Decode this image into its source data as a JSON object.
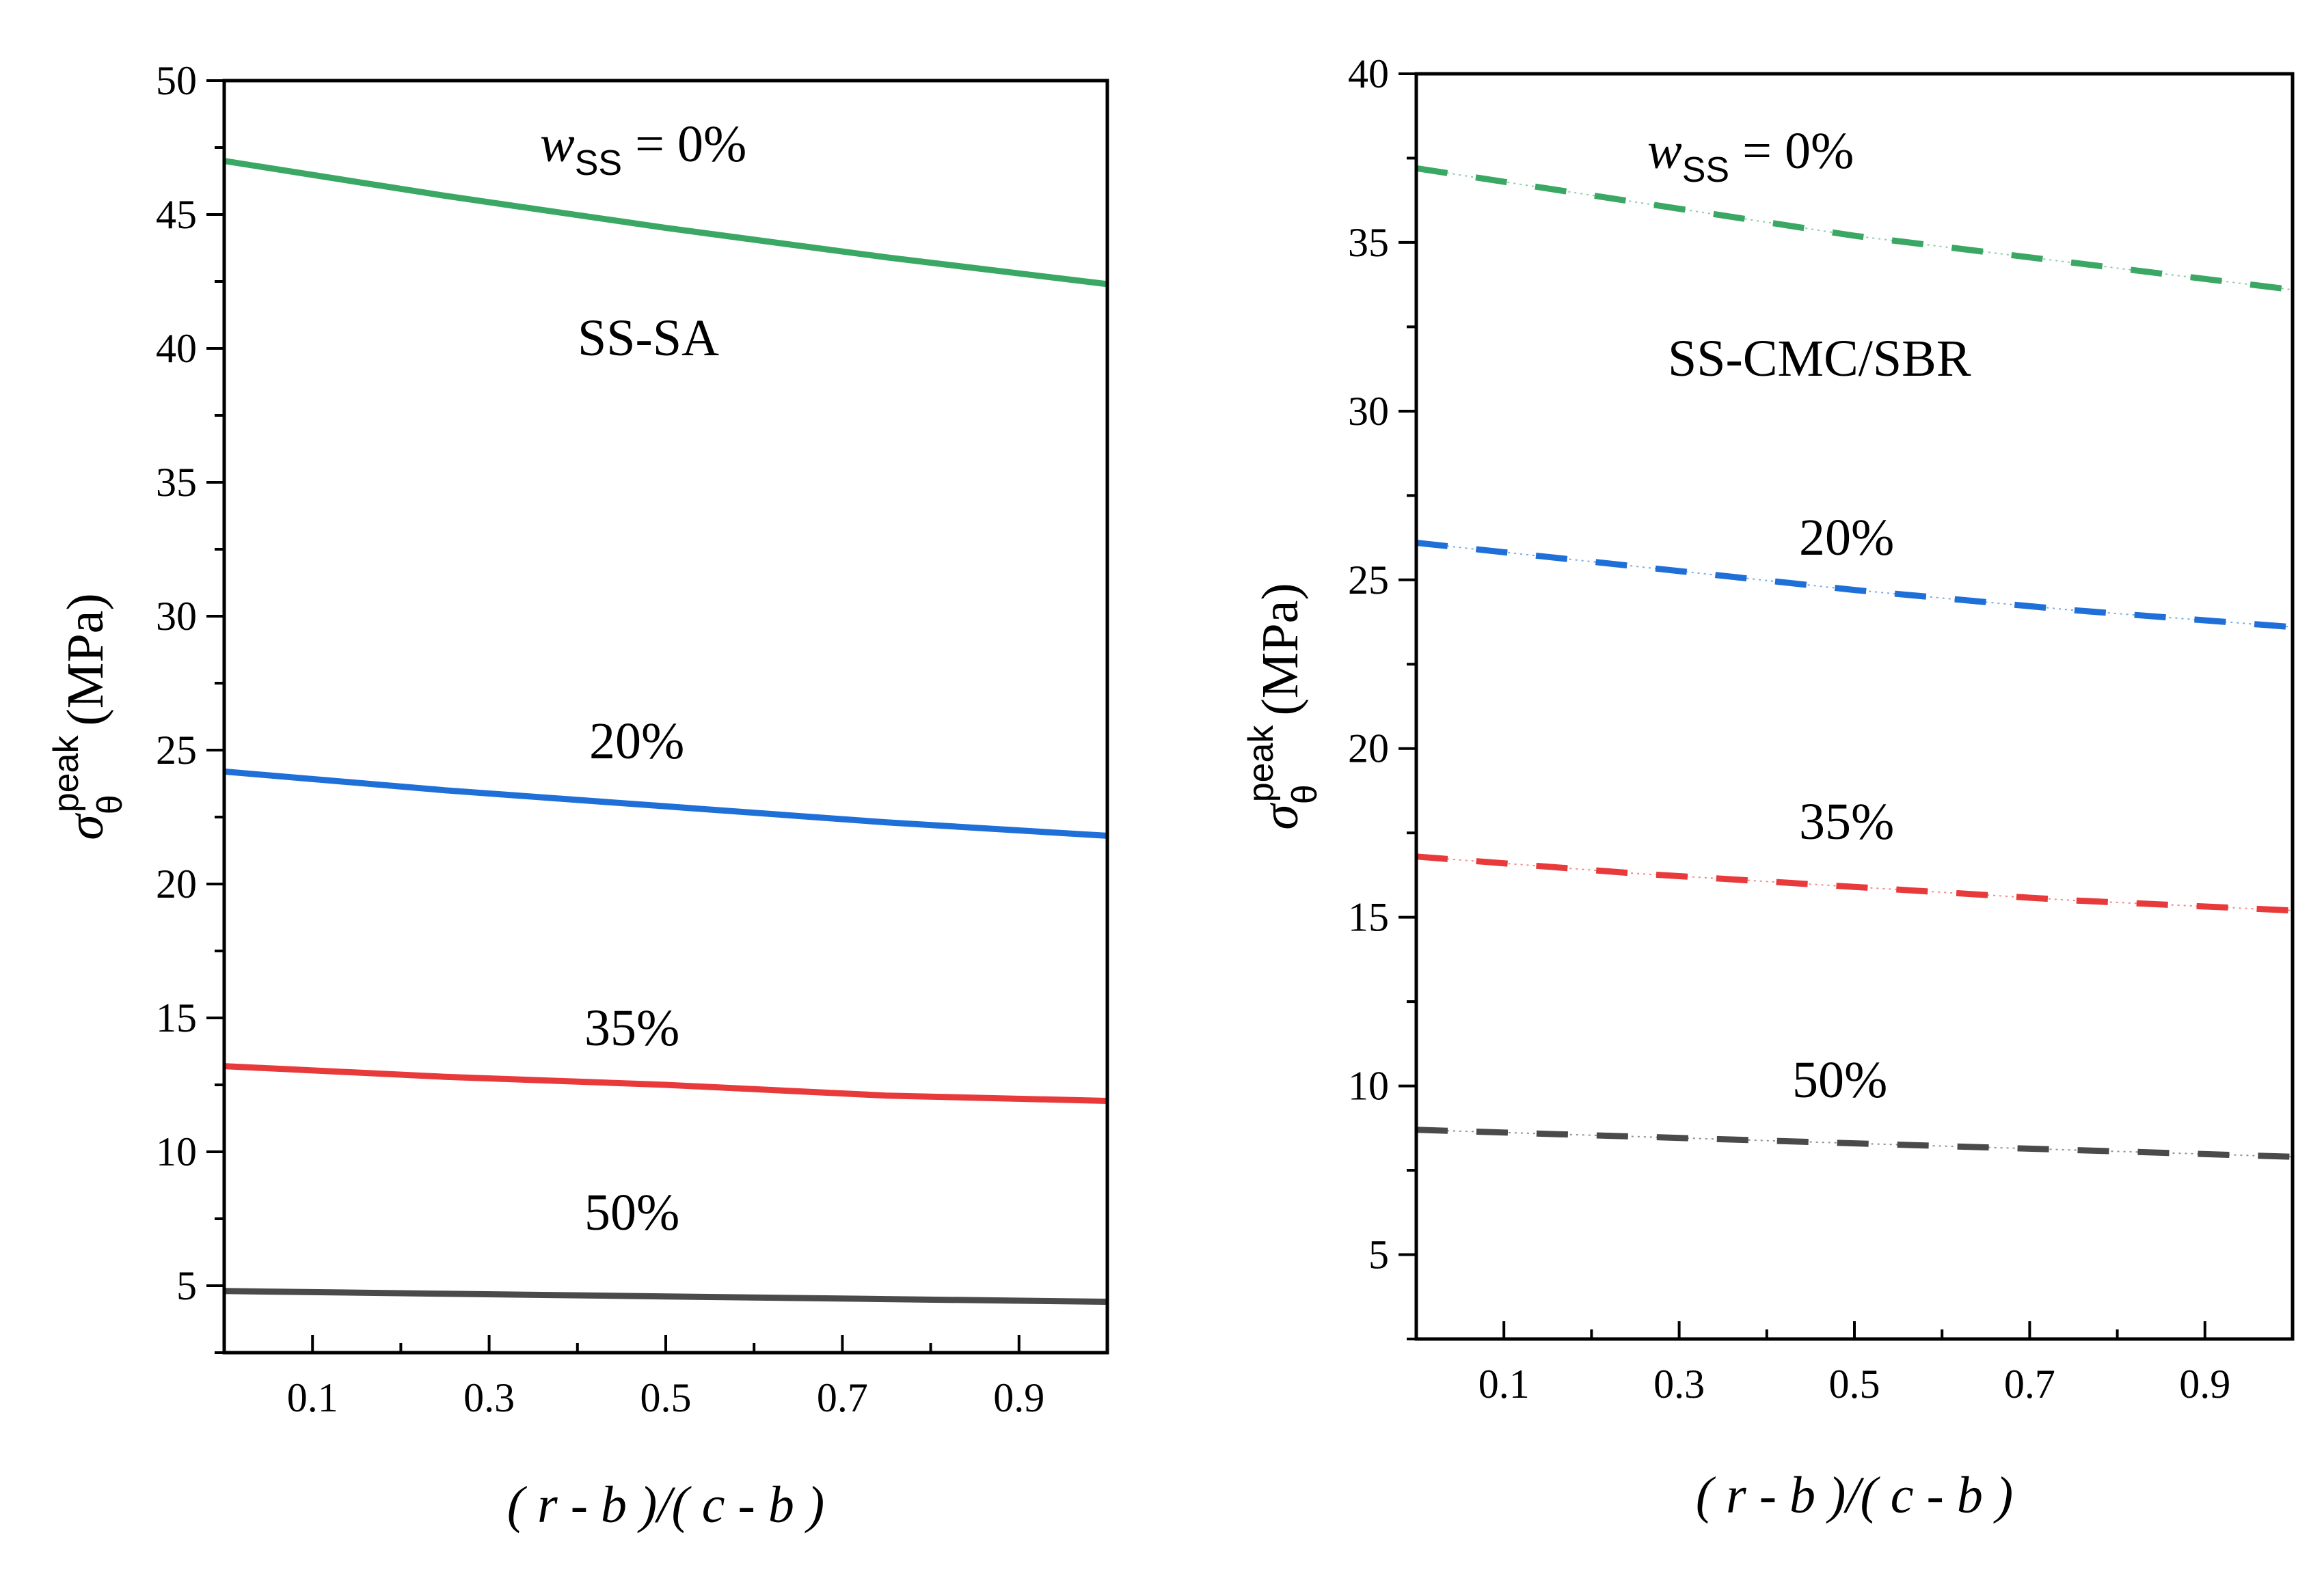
{
  "chart_data": [
    {
      "type": "line",
      "panel": "left",
      "xlabel": "( r - b )/( c - b )",
      "ylabel": "σθpeak (MPa)",
      "ylabel_parts": {
        "symbol": "σ",
        "sub": "θ",
        "sup": "peak",
        "unit": "(MPa)"
      },
      "xlim": [
        0,
        1
      ],
      "ylim": [
        2.5,
        50
      ],
      "xticks": [
        "0.1",
        "0.3",
        "0.5",
        "0.7",
        "0.9"
      ],
      "xtick_values": [
        0.1,
        0.3,
        0.5,
        0.7,
        0.9
      ],
      "yticks": [
        "5",
        "10",
        "15",
        "20",
        "25",
        "30",
        "35",
        "40",
        "45",
        "50"
      ],
      "ytick_values": [
        5,
        10,
        15,
        20,
        25,
        30,
        35,
        40,
        45,
        50
      ],
      "line_style": "solid",
      "series": [
        {
          "name": "0%",
          "color": "#3aa864",
          "x": [
            0,
            0.25,
            0.5,
            0.75,
            1.0
          ],
          "values": [
            47.0,
            45.7,
            44.5,
            43.4,
            42.4
          ]
        },
        {
          "name": "20%",
          "color": "#1f6fd8",
          "x": [
            0,
            0.25,
            0.5,
            0.75,
            1.0
          ],
          "values": [
            24.2,
            23.5,
            22.9,
            22.3,
            21.8
          ]
        },
        {
          "name": "35%",
          "color": "#e83a3a",
          "x": [
            0,
            0.25,
            0.5,
            0.75,
            1.0
          ],
          "values": [
            13.2,
            12.8,
            12.5,
            12.1,
            11.9
          ]
        },
        {
          "name": "50%",
          "color": "#4a4a4a",
          "x": [
            0,
            0.25,
            0.5,
            0.75,
            1.0
          ],
          "values": [
            4.8,
            4.7,
            4.6,
            4.5,
            4.4
          ]
        }
      ],
      "annotations": {
        "w_label_var": "w",
        "w_label_sub": "SS",
        "w_label_rest": " = 0%",
        "material": "SS-SA",
        "p20": "20%",
        "p35": "35%",
        "p50": "50%"
      }
    },
    {
      "type": "line",
      "panel": "right",
      "xlabel": "( r - b )/( c - b )",
      "ylabel": "σθpeak (MPa)",
      "ylabel_parts": {
        "symbol": "σ",
        "sub": "θ",
        "sup": "peak",
        "unit": "(MPa)"
      },
      "xlim": [
        0,
        1
      ],
      "ylim": [
        2.5,
        40
      ],
      "xticks": [
        "0.1",
        "0.3",
        "0.5",
        "0.7",
        "0.9"
      ],
      "xtick_values": [
        0.1,
        0.3,
        0.5,
        0.7,
        0.9
      ],
      "yticks": [
        "5",
        "10",
        "15",
        "20",
        "25",
        "30",
        "35",
        "40"
      ],
      "ytick_values": [
        5,
        10,
        15,
        20,
        25,
        30,
        35,
        40
      ],
      "line_style": "dashed",
      "series": [
        {
          "name": "0%",
          "color": "#3aa864",
          "x": [
            0,
            0.25,
            0.5,
            0.75,
            1.0
          ],
          "values": [
            37.2,
            36.2,
            35.2,
            34.4,
            33.6
          ]
        },
        {
          "name": "20%",
          "color": "#1f6fd8",
          "x": [
            0,
            0.25,
            0.5,
            0.75,
            1.0
          ],
          "values": [
            26.1,
            25.4,
            24.7,
            24.1,
            23.6
          ]
        },
        {
          "name": "35%",
          "color": "#e83a3a",
          "x": [
            0,
            0.25,
            0.5,
            0.75,
            1.0
          ],
          "values": [
            16.8,
            16.3,
            15.9,
            15.5,
            15.2
          ]
        },
        {
          "name": "50%",
          "color": "#4a4a4a",
          "x": [
            0,
            0.25,
            0.5,
            0.75,
            1.0
          ],
          "values": [
            8.7,
            8.5,
            8.3,
            8.1,
            7.9
          ]
        }
      ],
      "annotations": {
        "w_label_var": "w",
        "w_label_sub": "SS",
        "w_label_rest": " = 0%",
        "material": "SS-CMC/SBR",
        "p20": "20%",
        "p35": "35%",
        "p50": "50%"
      }
    }
  ]
}
